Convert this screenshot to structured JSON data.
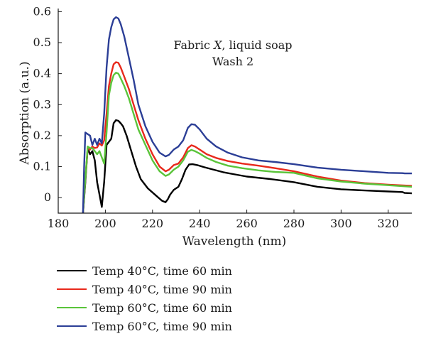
{
  "chart_data": {
    "type": "line",
    "title": "",
    "annotation": {
      "line1_pre": "Fabric ",
      "line1_italic": "X",
      "line1_post": ", liquid soap",
      "line2": "Wash 2"
    },
    "xlabel": "Wavelength (nm)",
    "ylabel": "Absorption (a.u.)",
    "xlim": [
      180,
      330
    ],
    "ylim": [
      -0.05,
      0.61
    ],
    "xticks": [
      180,
      200,
      220,
      240,
      260,
      280,
      300,
      320
    ],
    "yticks": [
      0,
      0.1,
      0.2,
      0.3,
      0.4,
      0.5,
      0.6
    ],
    "ytick_labels": [
      "0",
      "0.1",
      "0.2",
      "0.3",
      "0.4",
      "0.5",
      "0.6"
    ],
    "grid": false,
    "legend_position": "bottom-left, below plot",
    "series": [
      {
        "name": "Temp 40°C, time 60 min",
        "color": "#000000",
        "x": [
          190.5,
          191.5,
          192.5,
          193.5,
          194.5,
          195.5,
          196.5,
          197.5,
          198.5,
          199.5,
          200.5,
          201.5,
          202.5,
          203.5,
          204.5,
          205.5,
          206.5,
          207.5,
          209,
          211,
          213,
          215,
          218,
          221,
          224,
          225.5,
          226.5,
          227.5,
          229,
          231,
          232.5,
          234,
          235.5,
          237,
          239,
          242,
          246,
          250,
          255,
          260,
          270,
          280,
          290,
          300,
          310,
          320,
          326,
          327,
          330
        ],
        "y": [
          -0.05,
          0.05,
          0.16,
          0.14,
          0.15,
          0.12,
          0.05,
          0.01,
          -0.03,
          0.05,
          0.17,
          0.18,
          0.19,
          0.24,
          0.25,
          0.248,
          0.24,
          0.23,
          0.2,
          0.15,
          0.1,
          0.06,
          0.03,
          0.01,
          -0.01,
          -0.015,
          -0.005,
          0.01,
          0.025,
          0.035,
          0.06,
          0.09,
          0.107,
          0.108,
          0.105,
          0.098,
          0.09,
          0.082,
          0.075,
          0.068,
          0.06,
          0.05,
          0.035,
          0.027,
          0.023,
          0.02,
          0.018,
          0.015,
          0.014
        ]
      },
      {
        "name": "Temp 40°C, time 90 min",
        "color": "#e8291c",
        "x": [
          190.5,
          191.5,
          192.5,
          193.5,
          194.5,
          195.5,
          196.5,
          197.5,
          198.5,
          199.5,
          200.5,
          201.5,
          202.5,
          203.5,
          204.5,
          205.5,
          206.5,
          208,
          210,
          212,
          214,
          217,
          220,
          223,
          225.5,
          227,
          229,
          231,
          233,
          235,
          236.5,
          238,
          240,
          243,
          247,
          252,
          258,
          265,
          272,
          280,
          290,
          300,
          310,
          320,
          330
        ],
        "y": [
          -0.05,
          0.06,
          0.16,
          0.155,
          0.165,
          0.16,
          0.162,
          0.175,
          0.168,
          0.185,
          0.27,
          0.36,
          0.4,
          0.43,
          0.437,
          0.435,
          0.42,
          0.39,
          0.35,
          0.3,
          0.25,
          0.19,
          0.14,
          0.1,
          0.085,
          0.09,
          0.105,
          0.11,
          0.13,
          0.16,
          0.169,
          0.165,
          0.155,
          0.14,
          0.128,
          0.118,
          0.11,
          0.103,
          0.095,
          0.085,
          0.068,
          0.055,
          0.047,
          0.042,
          0.038
        ]
      },
      {
        "name": "Temp 60°C, time 60 min",
        "color": "#5ac43a",
        "x": [
          190.5,
          191.5,
          192.5,
          193.5,
          194.5,
          195.5,
          196.5,
          197.5,
          198.5,
          199.5,
          200.5,
          201.5,
          202.5,
          203.5,
          204.5,
          205.5,
          206.5,
          208,
          210,
          212,
          214,
          217,
          220,
          223,
          225.5,
          227,
          229,
          231,
          233,
          235,
          236.5,
          238,
          240,
          243,
          247,
          252,
          258,
          265,
          272,
          280,
          290,
          300,
          310,
          320,
          330
        ],
        "y": [
          -0.05,
          0.06,
          0.165,
          0.16,
          0.16,
          0.15,
          0.14,
          0.15,
          0.13,
          0.11,
          0.21,
          0.33,
          0.37,
          0.395,
          0.403,
          0.4,
          0.385,
          0.36,
          0.32,
          0.27,
          0.22,
          0.17,
          0.12,
          0.085,
          0.07,
          0.075,
          0.09,
          0.1,
          0.12,
          0.148,
          0.154,
          0.15,
          0.142,
          0.128,
          0.115,
          0.103,
          0.095,
          0.088,
          0.083,
          0.08,
          0.062,
          0.052,
          0.045,
          0.04,
          0.035
        ]
      },
      {
        "name": "Temp 60°C, time 90 min",
        "color": "#2b3e96",
        "x": [
          190.5,
          191,
          191.5,
          192.5,
          193.5,
          194.5,
          195.5,
          196.5,
          197.5,
          198.5,
          199.5,
          200.5,
          201.5,
          202.5,
          203.5,
          204.5,
          205.5,
          206.5,
          208,
          210,
          212,
          214,
          217,
          220,
          223,
          225.5,
          227,
          229,
          231,
          233,
          235,
          236.5,
          238,
          240,
          243,
          247,
          252,
          258,
          265,
          272,
          280,
          290,
          300,
          310,
          320,
          326,
          327,
          330
        ],
        "y": [
          -0.05,
          0.1,
          0.21,
          0.205,
          0.2,
          0.17,
          0.19,
          0.17,
          0.19,
          0.175,
          0.27,
          0.42,
          0.51,
          0.55,
          0.575,
          0.582,
          0.578,
          0.56,
          0.52,
          0.45,
          0.38,
          0.3,
          0.23,
          0.18,
          0.145,
          0.133,
          0.138,
          0.155,
          0.165,
          0.185,
          0.225,
          0.237,
          0.235,
          0.22,
          0.19,
          0.165,
          0.145,
          0.13,
          0.12,
          0.115,
          0.108,
          0.097,
          0.09,
          0.085,
          0.08,
          0.079,
          0.078,
          0.078
        ]
      }
    ]
  }
}
